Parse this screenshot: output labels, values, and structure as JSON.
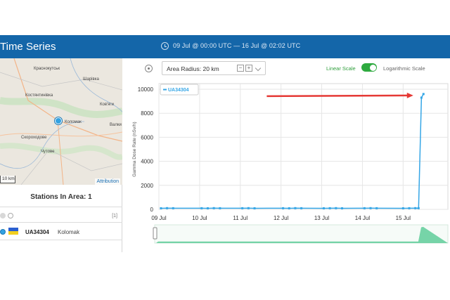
{
  "header": {
    "title": "Time Series",
    "time_range": "09 Jul @ 00:00 UTC  —  16 Jul @ 02:02 UTC",
    "icon": "clock-icon"
  },
  "map": {
    "labels": [
      "Краснокутськ",
      "Шарівка",
      "Костянтинівка",
      "Ков'яги",
      "Коломак",
      "Валки",
      "Скороходове",
      "Чутове"
    ],
    "scale_label": "10 km",
    "attribution": "Attribution"
  },
  "stations": {
    "title": "Stations In Area: 1",
    "count_label": "[1]",
    "items": [
      {
        "id": "UA34304",
        "place": "Kolomak",
        "flag": "ukraine-flag"
      }
    ]
  },
  "toolbar": {
    "radius_label": "Area Radius: 20 km",
    "stepper_minus": "−",
    "stepper_plus": "+",
    "linear_label": "Linear Scale",
    "log_label": "Logarithmic Scale",
    "linear_active": true,
    "accent": "#2eaa3f"
  },
  "chart_data": {
    "type": "line",
    "ylabel": "Gamma Dose Rate (nSv/h)",
    "legend": "UA34304",
    "x_ticks": [
      "09 Jul",
      "10 Jul",
      "11 Jul",
      "12 Jul",
      "13 Jul",
      "14 Jul",
      "15 Jul"
    ],
    "y_ticks": [
      "0",
      "2000",
      "4000",
      "6000",
      "8000",
      "10000"
    ],
    "ylim": [
      0,
      10000
    ],
    "xlim": [
      0,
      7.1
    ],
    "series": [
      {
        "name": "UA34304",
        "color": "#35a6e6",
        "x": [
          0.05,
          0.2,
          0.35,
          1.05,
          1.2,
          1.35,
          1.5,
          2.05,
          2.2,
          2.35,
          3.05,
          3.2,
          3.35,
          3.5,
          4.05,
          4.2,
          4.35,
          4.5,
          5.05,
          5.2,
          5.35,
          6.0,
          6.15,
          6.3,
          6.38,
          6.45,
          6.5
        ],
        "values": [
          90,
          100,
          95,
          95,
          90,
          100,
          95,
          95,
          100,
          90,
          95,
          90,
          100,
          95,
          90,
          95,
          100,
          90,
          95,
          100,
          95,
          90,
          95,
          100,
          95,
          9300,
          9600
        ]
      }
    ],
    "annotation": "red arrow pointing to spike",
    "annotation_color": "#e53935",
    "navigator_color": "#5fcc9a",
    "grid": true
  }
}
